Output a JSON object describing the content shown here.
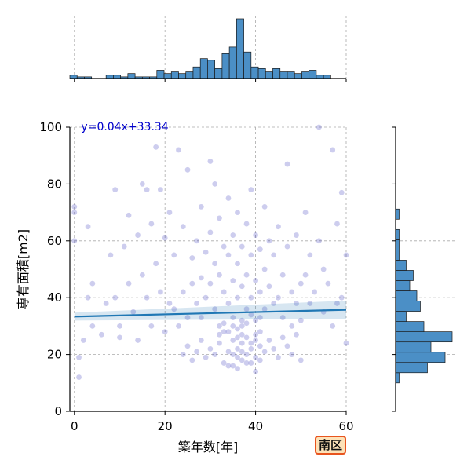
{
  "chart_data": [
    {
      "type": "scatter",
      "xlabel": "築年数[年]",
      "ylabel": "専有面積[m2]",
      "xlim": [
        -1,
        60
      ],
      "ylim": [
        0,
        100
      ],
      "x_ticks": [
        "0",
        "20",
        "40",
        "60"
      ],
      "y_ticks": [
        "0",
        "20",
        "40",
        "60",
        "80",
        "100"
      ],
      "grid": true,
      "point_color": "#1a1ab0",
      "regression": {
        "label": "y=0.04x+33.34",
        "slope": 0.04,
        "intercept": 33.34,
        "color": "#1f77b4",
        "label_color": "#0000cc"
      },
      "points": [
        [
          0,
          72
        ],
        [
          0,
          70
        ],
        [
          0,
          60
        ],
        [
          1,
          19
        ],
        [
          1,
          12
        ],
        [
          2,
          25
        ],
        [
          3,
          40
        ],
        [
          3,
          65
        ],
        [
          4,
          45
        ],
        [
          4,
          30
        ],
        [
          6,
          27
        ],
        [
          7,
          38
        ],
        [
          8,
          55
        ],
        [
          9,
          78
        ],
        [
          9,
          40
        ],
        [
          10,
          30
        ],
        [
          10,
          26
        ],
        [
          11,
          58
        ],
        [
          12,
          69
        ],
        [
          12,
          45
        ],
        [
          13,
          35
        ],
        [
          14,
          25
        ],
        [
          14,
          62
        ],
        [
          15,
          80
        ],
        [
          15,
          48
        ],
        [
          16,
          78
        ],
        [
          16,
          40
        ],
        [
          17,
          66
        ],
        [
          17,
          30
        ],
        [
          18,
          93
        ],
        [
          18,
          52
        ],
        [
          19,
          42
        ],
        [
          19,
          78
        ],
        [
          20,
          61
        ],
        [
          20,
          28
        ],
        [
          21,
          70
        ],
        [
          21,
          38
        ],
        [
          22,
          36
        ],
        [
          22,
          55
        ],
        [
          23,
          92
        ],
        [
          23,
          30
        ],
        [
          24,
          65
        ],
        [
          24,
          42
        ],
        [
          25,
          85
        ],
        [
          25,
          33
        ],
        [
          26,
          54
        ],
        [
          26,
          45
        ],
        [
          27,
          60
        ],
        [
          27,
          38
        ],
        [
          28,
          72
        ],
        [
          28,
          47
        ],
        [
          28,
          33
        ],
        [
          29,
          56
        ],
        [
          29,
          40
        ],
        [
          30,
          88
        ],
        [
          30,
          63
        ],
        [
          30,
          45
        ],
        [
          31,
          80
        ],
        [
          31,
          52
        ],
        [
          31,
          36
        ],
        [
          32,
          68
        ],
        [
          32,
          48
        ],
        [
          32,
          30
        ],
        [
          33,
          58
        ],
        [
          33,
          42
        ],
        [
          33,
          28
        ],
        [
          34,
          75
        ],
        [
          34,
          55
        ],
        [
          34,
          38
        ],
        [
          35,
          62
        ],
        [
          35,
          46
        ],
        [
          35,
          33
        ],
        [
          36,
          70
        ],
        [
          36,
          52
        ],
        [
          36,
          40
        ],
        [
          37,
          58
        ],
        [
          37,
          44
        ],
        [
          37,
          30
        ],
        [
          38,
          66
        ],
        [
          38,
          48
        ],
        [
          38,
          36
        ],
        [
          39,
          78
        ],
        [
          39,
          55
        ],
        [
          39,
          40
        ],
        [
          40,
          62
        ],
        [
          40,
          46
        ],
        [
          40,
          32
        ],
        [
          41,
          57
        ],
        [
          41,
          42
        ],
        [
          42,
          72
        ],
        [
          42,
          50
        ],
        [
          42,
          36
        ],
        [
          43,
          60
        ],
        [
          43,
          44
        ],
        [
          44,
          38
        ],
        [
          44,
          55
        ],
        [
          45,
          65
        ],
        [
          45,
          40
        ],
        [
          46,
          48
        ],
        [
          46,
          33
        ],
        [
          47,
          87
        ],
        [
          47,
          58
        ],
        [
          48,
          42
        ],
        [
          48,
          30
        ],
        [
          49,
          62
        ],
        [
          49,
          38
        ],
        [
          50,
          45
        ],
        [
          50,
          32
        ],
        [
          51,
          70
        ],
        [
          51,
          48
        ],
        [
          52,
          38
        ],
        [
          52,
          55
        ],
        [
          53,
          42
        ],
        [
          54,
          100
        ],
        [
          54,
          60
        ],
        [
          55,
          35
        ],
        [
          55,
          50
        ],
        [
          56,
          45
        ],
        [
          57,
          92
        ],
        [
          57,
          30
        ],
        [
          58,
          66
        ],
        [
          58,
          38
        ],
        [
          59,
          40
        ],
        [
          59,
          77
        ],
        [
          60,
          24
        ],
        [
          60,
          55
        ],
        [
          35,
          25
        ],
        [
          36,
          22
        ],
        [
          37,
          18
        ],
        [
          38,
          20
        ],
        [
          39,
          24
        ],
        [
          40,
          19
        ],
        [
          41,
          23
        ],
        [
          34,
          21
        ],
        [
          33,
          17
        ],
        [
          32,
          24
        ],
        [
          31,
          20
        ],
        [
          30,
          22
        ],
        [
          29,
          19
        ],
        [
          28,
          25
        ],
        [
          27,
          21
        ],
        [
          26,
          18
        ],
        [
          25,
          23
        ],
        [
          24,
          20
        ],
        [
          35,
          16
        ],
        [
          36,
          15
        ],
        [
          37,
          27
        ],
        [
          38,
          26
        ],
        [
          39,
          17
        ],
        [
          40,
          14
        ],
        [
          41,
          28
        ],
        [
          42,
          21
        ],
        [
          43,
          25
        ],
        [
          44,
          22
        ],
        [
          45,
          19
        ],
        [
          46,
          26
        ],
        [
          47,
          23
        ],
        [
          48,
          20
        ],
        [
          49,
          27
        ],
        [
          50,
          18
        ],
        [
          34,
          28
        ],
        [
          35,
          30
        ],
        [
          36,
          29
        ],
        [
          37,
          32
        ],
        [
          38,
          31
        ],
        [
          39,
          34
        ],
        [
          40,
          27
        ],
        [
          41,
          33
        ],
        [
          32,
          27
        ],
        [
          33,
          31
        ],
        [
          36,
          19
        ],
        [
          37,
          21
        ],
        [
          38,
          17
        ],
        [
          39,
          22
        ],
        [
          40,
          25
        ],
        [
          41,
          18
        ],
        [
          34,
          16
        ],
        [
          35,
          20
        ],
        [
          36,
          26
        ],
        [
          37,
          24
        ]
      ]
    },
    {
      "type": "bar",
      "orientation": "vertical",
      "bin_start": -1,
      "bin_width": 1.6,
      "counts": [
        2,
        1,
        1,
        0,
        0,
        2,
        2,
        1,
        3,
        1,
        1,
        1,
        5,
        3,
        4,
        3,
        4,
        7,
        12,
        11,
        6,
        15,
        19,
        36,
        16,
        7,
        6,
        4,
        6,
        4,
        4,
        3,
        4,
        5,
        2,
        2
      ],
      "bar_color": "#4b8fc6",
      "edge_color": "#1a1a1a"
    },
    {
      "type": "bar",
      "orientation": "horizontal",
      "bin_start": 10,
      "bin_width": 3.6,
      "counts": [
        1,
        9,
        14,
        10,
        16,
        8,
        3,
        7,
        6,
        4,
        5,
        3,
        1,
        1,
        1,
        0,
        1,
        0,
        0,
        0,
        0,
        0,
        0,
        0,
        0
      ],
      "bar_color": "#4b8fc6",
      "edge_color": "#1a1a1a"
    }
  ],
  "badge": {
    "label": "南区",
    "bg": "#fde2b8",
    "border": "#e8541e"
  }
}
